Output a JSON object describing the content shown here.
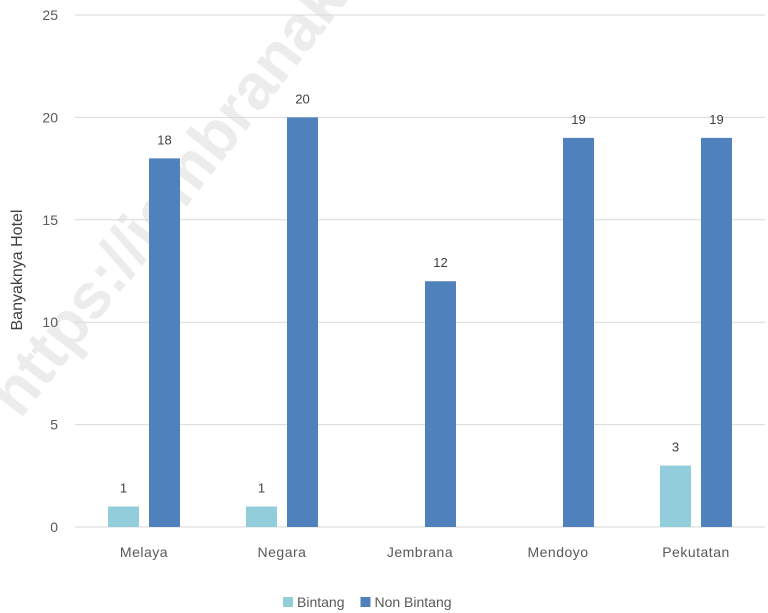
{
  "chart_data": {
    "type": "bar",
    "categories": [
      "Melaya",
      "Negara",
      "Jembrana",
      "Mendoyo",
      "Pekutatan"
    ],
    "series": [
      {
        "name": "Bintang",
        "values": [
          1,
          1,
          0,
          0,
          3
        ],
        "color": "#92CDDC"
      },
      {
        "name": "Non Bintang",
        "values": [
          18,
          20,
          12,
          19,
          19
        ],
        "color": "#4F81BD"
      }
    ],
    "ylabel": "Banyaknya Hotel",
    "ylim": [
      0,
      25
    ],
    "yticks": [
      0,
      5,
      10,
      15,
      20,
      25
    ],
    "grid": true,
    "legend": "bottom-center",
    "watermark": "https://jembranakab.go.id"
  }
}
